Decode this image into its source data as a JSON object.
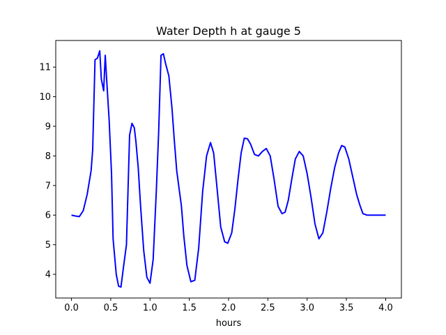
{
  "chart_data": {
    "type": "line",
    "title": "Water Depth h at gauge 5",
    "xlabel": "hours",
    "ylabel": "",
    "xlim": [
      -0.2,
      4.2
    ],
    "ylim": [
      3.2,
      11.9
    ],
    "xticks": [
      0.0,
      0.5,
      1.0,
      1.5,
      2.0,
      2.5,
      3.0,
      3.5,
      4.0
    ],
    "xtick_labels": [
      "0.0",
      "0.5",
      "1.0",
      "1.5",
      "2.0",
      "2.5",
      "3.0",
      "3.5",
      "4.0"
    ],
    "yticks": [
      4,
      5,
      6,
      7,
      8,
      9,
      10,
      11
    ],
    "ytick_labels": [
      "4",
      "5",
      "6",
      "7",
      "8",
      "9",
      "10",
      "11"
    ],
    "grid": false,
    "series": [
      {
        "color": "#0000ff",
        "x": [
          0.0,
          0.05,
          0.1,
          0.15,
          0.2,
          0.25,
          0.27,
          0.3,
          0.33,
          0.36,
          0.38,
          0.41,
          0.43,
          0.45,
          0.48,
          0.51,
          0.53,
          0.57,
          0.6,
          0.63,
          0.66,
          0.7,
          0.74,
          0.77,
          0.8,
          0.82,
          0.85,
          0.88,
          0.92,
          0.96,
          1.0,
          1.04,
          1.08,
          1.11,
          1.14,
          1.17,
          1.2,
          1.24,
          1.28,
          1.31,
          1.34,
          1.37,
          1.4,
          1.43,
          1.47,
          1.52,
          1.57,
          1.62,
          1.67,
          1.72,
          1.77,
          1.81,
          1.85,
          1.9,
          1.95,
          1.99,
          2.04,
          2.08,
          2.12,
          2.16,
          2.2,
          2.24,
          2.28,
          2.33,
          2.38,
          2.43,
          2.48,
          2.53,
          2.58,
          2.63,
          2.68,
          2.72,
          2.76,
          2.81,
          2.85,
          2.9,
          2.95,
          3.0,
          3.05,
          3.1,
          3.15,
          3.2,
          3.25,
          3.3,
          3.35,
          3.4,
          3.44,
          3.48,
          3.53,
          3.58,
          3.63,
          3.67,
          3.71,
          3.76,
          3.81,
          3.86,
          3.91,
          3.96,
          4.0
        ],
        "y": [
          6.0,
          5.97,
          5.95,
          6.15,
          6.7,
          7.5,
          8.2,
          11.25,
          11.3,
          11.55,
          10.6,
          10.2,
          11.4,
          10.5,
          9.2,
          7.4,
          5.2,
          4.0,
          3.6,
          3.57,
          4.2,
          5.0,
          8.7,
          9.1,
          8.95,
          8.5,
          7.6,
          6.3,
          4.8,
          3.9,
          3.7,
          4.5,
          6.8,
          8.8,
          11.4,
          11.45,
          11.1,
          10.7,
          9.6,
          8.5,
          7.5,
          6.9,
          6.3,
          5.3,
          4.3,
          3.75,
          3.8,
          4.9,
          6.8,
          8.0,
          8.45,
          8.1,
          7.0,
          5.6,
          5.1,
          5.05,
          5.4,
          6.2,
          7.2,
          8.1,
          8.6,
          8.58,
          8.4,
          8.05,
          8.0,
          8.15,
          8.25,
          8.0,
          7.2,
          6.3,
          6.05,
          6.1,
          6.5,
          7.3,
          7.9,
          8.15,
          8.0,
          7.4,
          6.6,
          5.7,
          5.2,
          5.4,
          6.1,
          6.9,
          7.6,
          8.1,
          8.35,
          8.3,
          7.9,
          7.3,
          6.7,
          6.35,
          6.05,
          6.0,
          6.0,
          6.0,
          6.0,
          6.0,
          6.0
        ]
      }
    ]
  }
}
